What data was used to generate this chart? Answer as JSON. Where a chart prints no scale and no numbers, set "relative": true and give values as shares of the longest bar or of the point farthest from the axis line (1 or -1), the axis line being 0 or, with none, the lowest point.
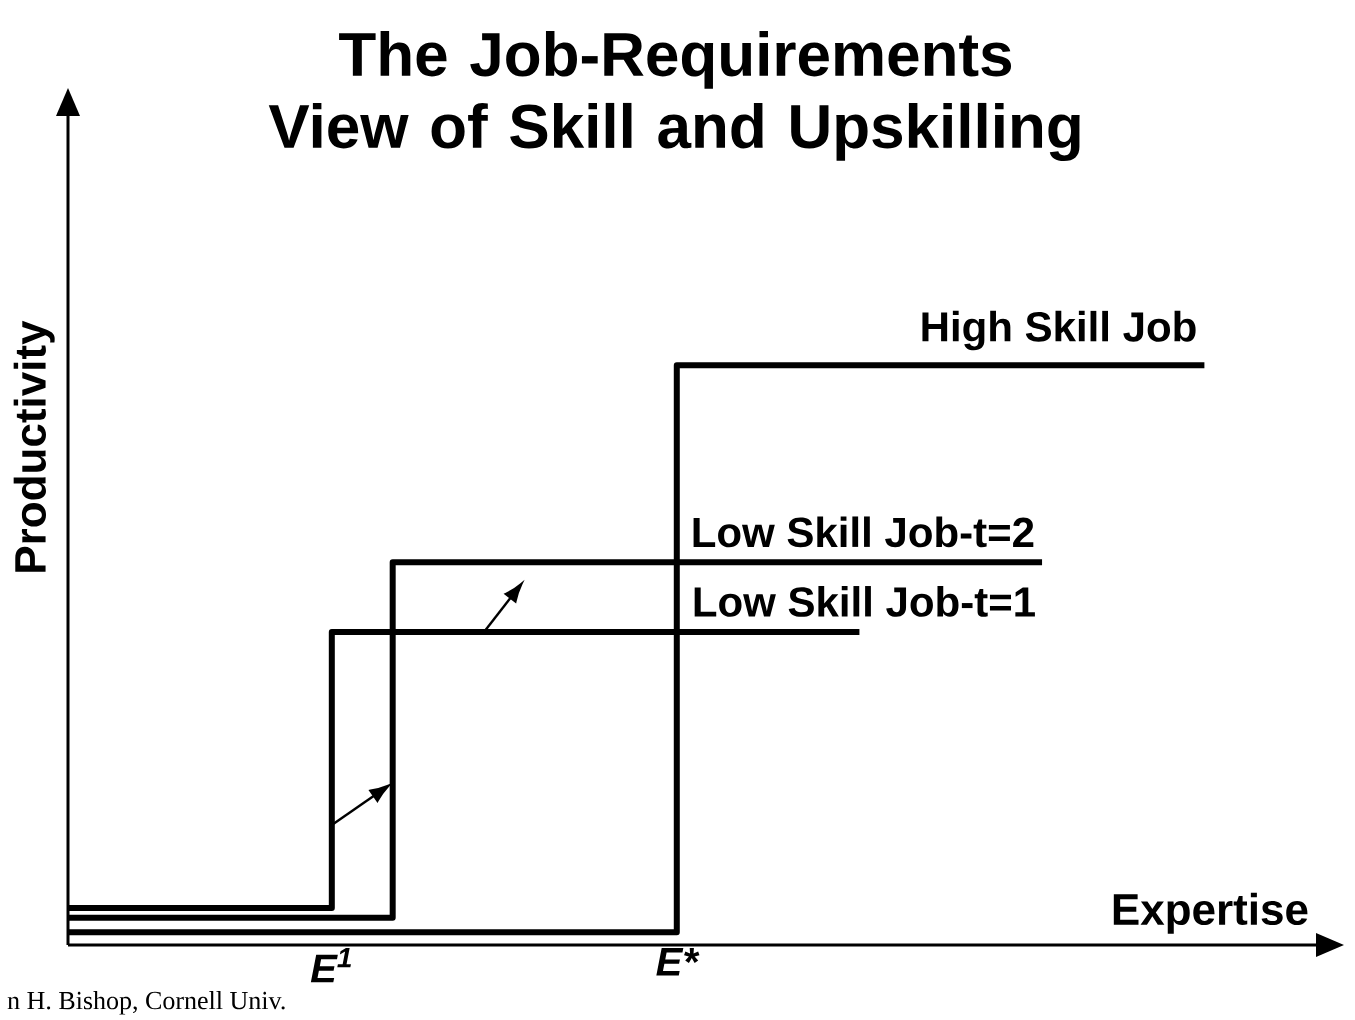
{
  "chart_data": {
    "type": "step",
    "title": "The Job-Requirements View of Skill and Upskilling",
    "xlabel": "Expertise",
    "ylabel": "Productivity",
    "relative": true,
    "legend": false,
    "categories": [
      null,
      null,
      null,
      null,
      null,
      null,
      null,
      null,
      null,
      null,
      null,
      null,
      null,
      "E$^{1}$",
      null,
      null,
      null,
      null,
      null,
      null,
      null,
      null,
      null,
      null,
      null,
      null,
      null,
      null,
      null,
      null,
      "E*",
      null,
      null,
      null,
      null,
      null,
      null,
      null,
      null,
      null,
      null,
      null,
      null,
      null,
      null,
      null,
      null,
      null,
      null,
      null,
      null,
      null,
      null,
      null,
      null,
      null,
      null,
      null,
      null,
      null,
      null,
      null
    ],
    "series": [
      {
        "name": "High Skill Job",
        "color": "#000000",
        "values": [
          0.022,
          0.022,
          0.022,
          0.022,
          0.022,
          0.022,
          0.022,
          0.022,
          0.022,
          0.022,
          0.022,
          0.022,
          0.022,
          0.022,
          0.022,
          0.022,
          0.022,
          0.022,
          0.022,
          0.022,
          0.022,
          0.022,
          0.022,
          0.022,
          0.022,
          0.022,
          0.022,
          0.022,
          0.022,
          0.022,
          1,
          1,
          1,
          1,
          1,
          1,
          1,
          1,
          1,
          1,
          1,
          1,
          1,
          1,
          1,
          1,
          1,
          1,
          1,
          1,
          1,
          1,
          1,
          1,
          1,
          1,
          1,
          null,
          null,
          null,
          null,
          null
        ]
      },
      {
        "name": "Low Skill Job-t=2",
        "color": "#000000",
        "values": [
          0.047,
          0.047,
          0.047,
          0.047,
          0.047,
          0.047,
          0.047,
          0.047,
          0.047,
          0.047,
          0.047,
          0.047,
          0.047,
          0.047,
          0.047,
          0.047,
          0.66,
          0.66,
          0.66,
          0.66,
          0.66,
          0.66,
          0.66,
          0.66,
          0.66,
          0.66,
          0.66,
          0.66,
          0.66,
          0.66,
          0.66,
          0.66,
          0.66,
          0.66,
          0.66,
          0.66,
          0.66,
          0.66,
          0.66,
          0.66,
          0.66,
          0.66,
          0.66,
          0.66,
          0.66,
          0.66,
          0.66,
          0.66,
          0.66,
          null,
          null,
          null,
          null,
          null,
          null,
          null,
          null,
          null,
          null,
          null,
          null,
          null
        ]
      },
      {
        "name": "Low Skill Job-t=1",
        "color": "#000000",
        "values": [
          0.064,
          0.064,
          0.064,
          0.064,
          0.064,
          0.064,
          0.064,
          0.064,
          0.064,
          0.064,
          0.064,
          0.064,
          0.064,
          0.54,
          0.54,
          0.54,
          0.54,
          0.54,
          0.54,
          0.54,
          0.54,
          0.54,
          0.54,
          0.54,
          0.54,
          0.54,
          0.54,
          0.54,
          0.54,
          0.54,
          0.54,
          0.54,
          0.54,
          0.54,
          0.54,
          0.54,
          0.54,
          0.54,
          0.54,
          0.54,
          null,
          null,
          null,
          null,
          null,
          null,
          null,
          null,
          null,
          null,
          null,
          null,
          null,
          null,
          null,
          null,
          null,
          null,
          null,
          null,
          null,
          null
        ]
      }
    ],
    "annotations": [
      "n H. Bishop, Cornell Univ."
    ]
  }
}
